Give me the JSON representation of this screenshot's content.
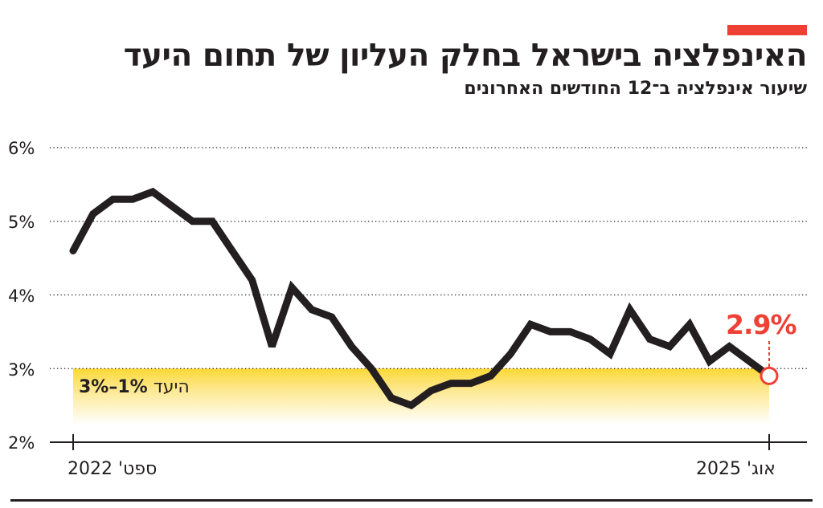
{
  "header": {
    "accent_color": "#ee4035",
    "title": "האינפלציה בישראל בחלק העליון של תחום היעד",
    "subtitle": "שיעור אינפלציה ב־12 החודשים האחרונים"
  },
  "chart_data": {
    "type": "line",
    "title": "האינפלציה בישראל בחלק העליון של תחום היעד",
    "subtitle": "שיעור אינפלציה ב־12 החודשים האחרונים",
    "xlabel": "",
    "ylabel": "",
    "ylim": [
      2,
      6
    ],
    "yticks": [
      "6%",
      "5%",
      "4%",
      "3%",
      "2%"
    ],
    "ytick_values": [
      6,
      5,
      4,
      3,
      2
    ],
    "grid": "horizontal dotted",
    "x_start": "ספט' 2022",
    "x_end": "אוג' 2025",
    "x_tick_labels": [
      "ספט' 2022",
      "אוג' 2025"
    ],
    "x": [
      "2022-09",
      "2022-10",
      "2022-11",
      "2022-12",
      "2023-01",
      "2023-02",
      "2023-03",
      "2023-04",
      "2023-05",
      "2023-06",
      "2023-07",
      "2023-08",
      "2023-09",
      "2023-10",
      "2023-11",
      "2023-12",
      "2024-01",
      "2024-02",
      "2024-03",
      "2024-04",
      "2024-05",
      "2024-06",
      "2024-07",
      "2024-08",
      "2024-09",
      "2024-10",
      "2024-11",
      "2024-12",
      "2025-01",
      "2025-02",
      "2025-03",
      "2025-04",
      "2025-05",
      "2025-06",
      "2025-07",
      "2025-08"
    ],
    "series": [
      {
        "name": "שיעור אינפלציה",
        "color": "#231f20",
        "values": [
          4.6,
          5.1,
          5.3,
          5.3,
          5.4,
          5.2,
          5.0,
          5.0,
          4.6,
          4.2,
          3.3,
          4.1,
          3.8,
          3.7,
          3.3,
          3.0,
          2.6,
          2.5,
          2.7,
          2.8,
          2.8,
          2.9,
          3.2,
          3.6,
          3.5,
          3.5,
          3.4,
          3.2,
          3.8,
          3.4,
          3.3,
          3.6,
          3.1,
          3.3,
          3.1,
          2.9
        ]
      }
    ],
    "target_band": {
      "label_text": "היעד",
      "label_range": "1%–3%",
      "low": 1,
      "high": 3,
      "color": "#fcd935"
    },
    "annotations": [
      {
        "text": "2.9%",
        "x": "2025-08",
        "value": 2.9,
        "color": "#ee4035"
      }
    ]
  },
  "axis": {
    "y_labels": [
      "6%",
      "5%",
      "4%",
      "3%",
      "2%"
    ],
    "x_start_label": "ספט' 2022",
    "x_end_label": "אוג' 2025"
  },
  "band": {
    "label_word": "היעד",
    "label_range": "3%–1%"
  },
  "latest": {
    "value_label": "2.9%"
  }
}
